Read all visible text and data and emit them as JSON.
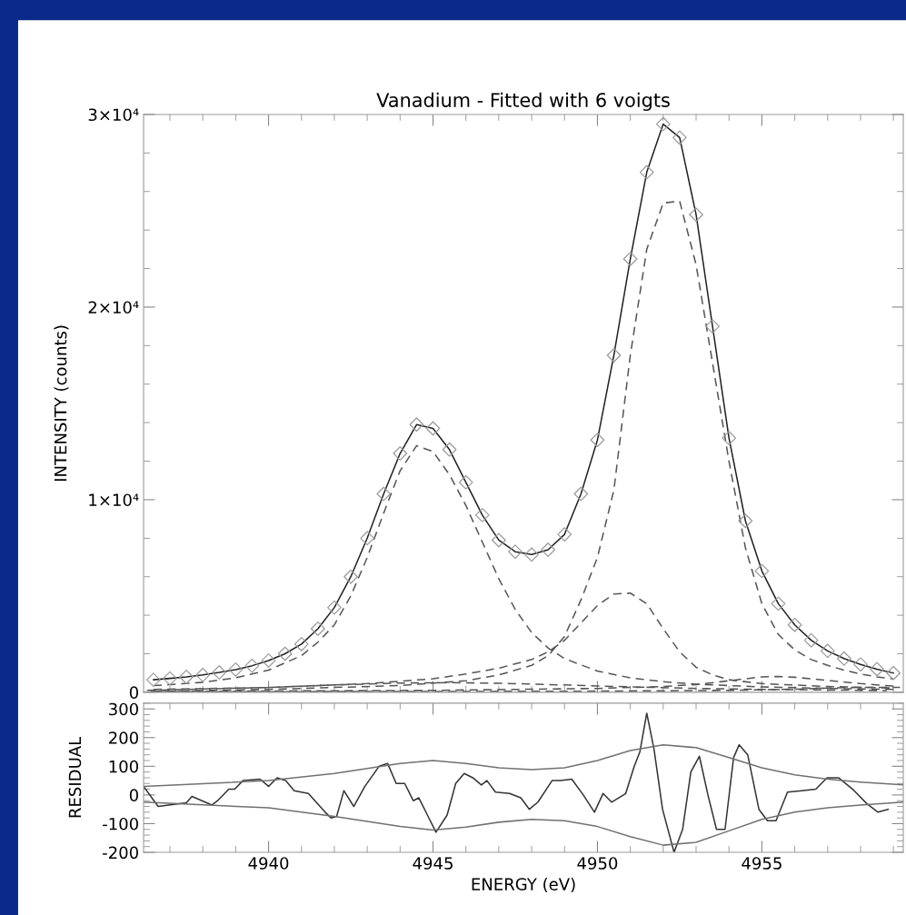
{
  "chart_data": [
    {
      "type": "line",
      "title": "Vanadium - Fitted with 6 voigts",
      "ylabel": "INTENSITY (counts)",
      "xlim": [
        4936.2,
        4959.3
      ],
      "xticks": [
        4940,
        4945,
        4950,
        4955
      ],
      "ylim": [
        0,
        30000
      ],
      "yticks": [
        {
          "value": 0,
          "label": "0"
        },
        {
          "value": 10000,
          "label": "1×10⁴"
        },
        {
          "value": 20000,
          "label": "2×10⁴"
        },
        {
          "value": 30000,
          "label": "3×10⁴"
        }
      ],
      "tick_labels": "y",
      "grid": false,
      "series": [
        {
          "type": "scatter",
          "marker": "diamond",
          "color": "#9a9a9a",
          "x": [
            4936.5,
            4937,
            4937.5,
            4938,
            4938.5,
            4939,
            4939.5,
            4940,
            4940.5,
            4941,
            4941.5,
            4942,
            4942.5,
            4943,
            4943.5,
            4944,
            4944.5,
            4945,
            4945.5,
            4946,
            4946.5,
            4947,
            4947.5,
            4948,
            4948.5,
            4949,
            4949.5,
            4950,
            4950.5,
            4951,
            4951.5,
            4952,
            4952.5,
            4953,
            4953.5,
            4954,
            4954.5,
            4955,
            4955.5,
            4956,
            4956.5,
            4957,
            4957.5,
            4958,
            4958.5,
            4959
          ],
          "values": [
            650,
            720,
            800,
            900,
            1030,
            1180,
            1380,
            1650,
            2000,
            2500,
            3300,
            4400,
            6000,
            8000,
            10300,
            12400,
            13900,
            13700,
            12600,
            10900,
            9200,
            7900,
            7300,
            7150,
            7400,
            8200,
            10300,
            13100,
            17500,
            22500,
            27000,
            29500,
            28800,
            24800,
            19000,
            13200,
            8900,
            6300,
            4600,
            3500,
            2700,
            2150,
            1750,
            1450,
            1200,
            1000
          ]
        },
        {
          "line_style": "solid",
          "color": "#222222",
          "x": [
            4936.5,
            4937,
            4937.5,
            4938,
            4938.5,
            4939,
            4939.5,
            4940,
            4940.5,
            4941,
            4941.5,
            4942,
            4942.5,
            4943,
            4943.5,
            4944,
            4944.5,
            4945,
            4945.5,
            4946,
            4946.5,
            4947,
            4947.5,
            4948,
            4948.5,
            4949,
            4949.5,
            4950,
            4950.5,
            4951,
            4951.5,
            4952,
            4952.5,
            4953,
            4953.5,
            4954,
            4954.5,
            4955,
            4955.5,
            4956,
            4956.5,
            4957,
            4957.5,
            4958,
            4958.5,
            4959
          ],
          "values": [
            650,
            720,
            800,
            900,
            1030,
            1180,
            1380,
            1650,
            2000,
            2500,
            3300,
            4400,
            6000,
            8000,
            10300,
            12400,
            13900,
            13700,
            12600,
            10900,
            9200,
            7900,
            7300,
            7150,
            7400,
            8200,
            10300,
            13100,
            17500,
            22500,
            27000,
            29500,
            28800,
            24800,
            19000,
            13200,
            8900,
            6300,
            4600,
            3500,
            2700,
            2150,
            1750,
            1450,
            1200,
            1000
          ]
        },
        {
          "line_style": "dashed",
          "color": "#555555",
          "x": [
            4936.5,
            4937,
            4938,
            4939,
            4940,
            4941,
            4941.5,
            4942,
            4942.5,
            4943,
            4943.5,
            4944,
            4944.5,
            4945,
            4945.5,
            4946,
            4946.5,
            4947,
            4947.5,
            4948,
            4948.5,
            4949,
            4950,
            4951,
            4952,
            4953,
            4955,
            4957,
            4959
          ],
          "values": [
            350,
            400,
            520,
            750,
            1150,
            1900,
            2600,
            3500,
            5000,
            7000,
            9300,
            11500,
            12800,
            12500,
            11300,
            9700,
            7800,
            5900,
            4300,
            3100,
            2300,
            1750,
            1100,
            750,
            550,
            420,
            280,
            200,
            150
          ]
        },
        {
          "line_style": "dashed",
          "color": "#555555",
          "x": [
            4936.5,
            4940,
            4944,
            4946,
            4947,
            4948,
            4948.5,
            4949,
            4949.5,
            4950,
            4950.5,
            4951,
            4951.5,
            4952,
            4952.5,
            4953,
            4953.5,
            4954,
            4954.5,
            4955,
            4955.5,
            4956,
            4956.5,
            4957,
            4957.5,
            4958,
            4958.5,
            4959
          ],
          "values": [
            60,
            150,
            350,
            600,
            900,
            1400,
            1900,
            2900,
            4800,
            7000,
            10500,
            17500,
            23000,
            25400,
            25500,
            22200,
            17100,
            12000,
            7500,
            4600,
            3000,
            2200,
            1700,
            1400,
            1150,
            950,
            800,
            700
          ]
        },
        {
          "line_style": "dashed",
          "color": "#555555",
          "x": [
            4936.5,
            4940,
            4943,
            4945,
            4946,
            4947,
            4948,
            4948.5,
            4949,
            4949.5,
            4950,
            4950.5,
            4951,
            4951.5,
            4952,
            4952.5,
            4953,
            4953.5,
            4954,
            4955,
            4957,
            4959
          ],
          "values": [
            150,
            250,
            450,
            700,
            950,
            1250,
            1700,
            2100,
            2700,
            3600,
            4500,
            5100,
            5150,
            4600,
            3300,
            2100,
            1300,
            900,
            650,
            450,
            300,
            220
          ]
        },
        {
          "line_style": "dashed",
          "color": "#555555",
          "x": [
            4936.4,
            4945,
            4950,
            4952,
            4953,
            4954,
            4955,
            4955.5,
            4956,
            4957,
            4958,
            4959
          ],
          "values": [
            40,
            100,
            200,
            300,
            400,
            600,
            800,
            820,
            780,
            620,
            450,
            320
          ]
        },
        {
          "line_style": "dashed",
          "color": "#555555",
          "x": [
            4936.3,
            4940,
            4942,
            4944,
            4945.5,
            4947,
            4949,
            4951,
            4953,
            4955,
            4958.8
          ],
          "values": [
            100,
            250,
            380,
            480,
            500,
            470,
            380,
            280,
            200,
            150,
            90
          ]
        },
        {
          "line_style": "dashed",
          "color": "#555555",
          "x": [
            4936.6,
            4945,
            4950,
            4954,
            4956,
            4957,
            4958,
            4959.2
          ],
          "values": [
            30,
            40,
            60,
            100,
            160,
            220,
            260,
            250
          ]
        }
      ]
    },
    {
      "type": "line",
      "xlabel": "ENERGY (eV)",
      "ylabel": "RESIDUAL",
      "xlim": [
        4936.2,
        4959.3
      ],
      "xticks": [
        4940,
        4945,
        4950,
        4955
      ],
      "ylim": [
        -200,
        320
      ],
      "yticks": [
        -200,
        -100,
        0,
        100,
        200,
        300
      ],
      "grid": false,
      "series": [
        {
          "line_style": "solid",
          "color": "#333333",
          "x": [
            4936.2,
            4936.64,
            4937.5,
            4937.67,
            4938.28,
            4938.45,
            4938.79,
            4938.97,
            4939.22,
            4939.74,
            4940.0,
            4940.26,
            4940.52,
            4940.78,
            4941.21,
            4941.72,
            4941.9,
            4942.07,
            4942.29,
            4942.59,
            4942.93,
            4943.36,
            4943.62,
            4943.88,
            4944.14,
            4944.4,
            4944.57,
            4944.83,
            4945.09,
            4945.43,
            4945.69,
            4945.95,
            4946.21,
            4946.47,
            4946.64,
            4946.9,
            4947.33,
            4947.67,
            4947.93,
            4948.19,
            4948.62,
            4948.88,
            4949.22,
            4949.57,
            4949.91,
            4950.17,
            4950.43,
            4950.86,
            4951.12,
            4951.29,
            4951.5,
            4951.72,
            4951.98,
            4952.33,
            4952.59,
            4952.84,
            4953.1,
            4953.36,
            4953.62,
            4953.88,
            4954.14,
            4954.31,
            4954.57,
            4954.91,
            4955.17,
            4955.43,
            4955.78,
            4956.21,
            4956.64,
            4956.98,
            4957.33,
            4957.76,
            4958.19,
            4958.53,
            4958.84
          ],
          "values": [
            30,
            -40,
            -27,
            -5,
            -35,
            -20,
            20,
            20,
            50,
            55,
            30,
            60,
            50,
            15,
            5,
            -60,
            -80,
            -75,
            15,
            -40,
            30,
            100,
            110,
            40,
            40,
            -20,
            -10,
            -70,
            -130,
            -70,
            40,
            75,
            60,
            35,
            50,
            10,
            5,
            -10,
            -50,
            -25,
            50,
            50,
            55,
            0,
            -60,
            5,
            -25,
            5,
            100,
            150,
            285,
            160,
            -50,
            -200,
            -120,
            80,
            135,
            0,
            -120,
            -120,
            130,
            175,
            140,
            -50,
            -90,
            -90,
            10,
            15,
            20,
            60,
            60,
            20,
            -30,
            -60,
            -50
          ]
        },
        {
          "line_style": "solid",
          "color": "#707070",
          "x": [
            4936.2,
            4940,
            4942,
            4944,
            4945,
            4946,
            4947,
            4948,
            4949,
            4950,
            4951,
            4952,
            4953,
            4954,
            4955,
            4956,
            4957,
            4958,
            4959.3
          ],
          "values": [
            30,
            50,
            75,
            110,
            120,
            110,
            95,
            88,
            95,
            120,
            155,
            175,
            165,
            130,
            95,
            70,
            55,
            45,
            35
          ]
        },
        {
          "line_style": "solid",
          "color": "#707070",
          "x": [
            4936.2,
            4940,
            4942,
            4944,
            4945,
            4946,
            4947,
            4948,
            4949,
            4950,
            4951,
            4952,
            4953,
            4954,
            4955,
            4956,
            4957,
            4958,
            4959.3
          ],
          "values": [
            -25,
            -45,
            -75,
            -110,
            -122,
            -112,
            -95,
            -85,
            -90,
            -110,
            -145,
            -175,
            -165,
            -125,
            -85,
            -60,
            -45,
            -35,
            -25
          ]
        }
      ]
    }
  ]
}
